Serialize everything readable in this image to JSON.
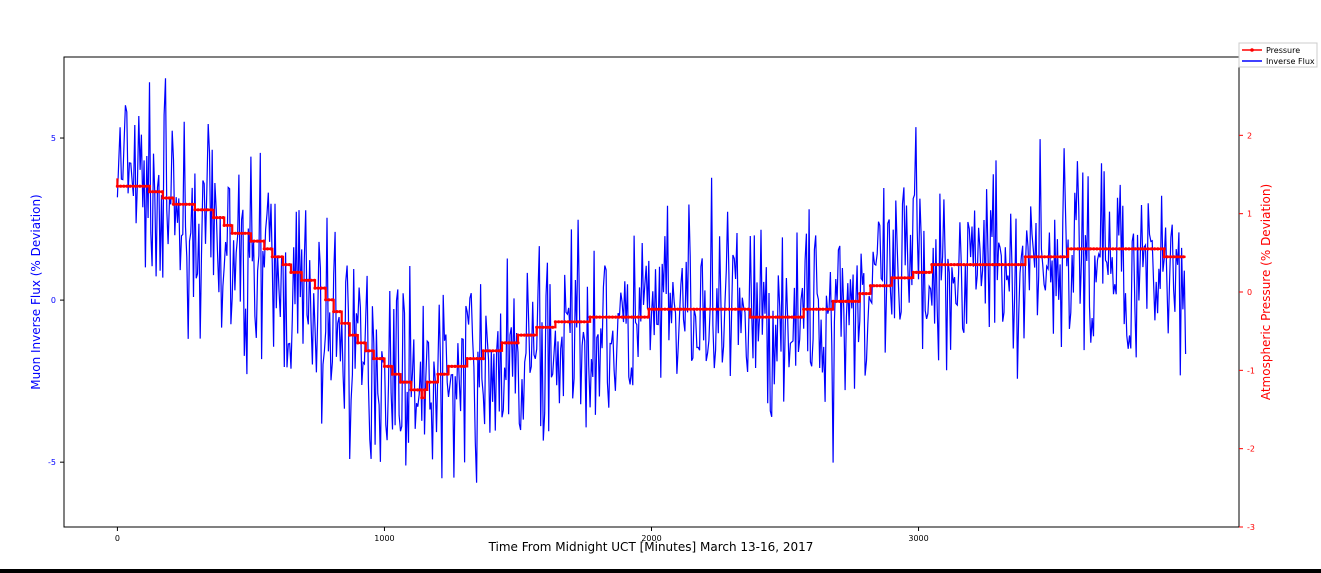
{
  "chart_data": {
    "type": "line",
    "title": "",
    "xlabel": "Time From Midnight UCT [Minutes] March 13-16, 2017",
    "ylabel_left": "Muon Inverse Flux (% Deviation)",
    "ylabel_right": "Atmospheric Pressure (% Deviation)",
    "xlim": [
      -200,
      4200
    ],
    "ylim_left": [
      -7,
      7.5
    ],
    "ylim_right": [
      -3,
      3
    ],
    "x_ticks": [
      0,
      1000,
      2000,
      3000
    ],
    "y_ticks_left": [
      -5,
      0,
      5
    ],
    "y_ticks_right": [
      -3,
      -2,
      -1,
      0,
      1,
      2
    ],
    "grid": false,
    "legend_placement": "top-right outside",
    "colors": {
      "pressure": "#ff0000",
      "flux": "#0000ff",
      "right_axis": "#ff0000",
      "left_axis": "#0000ff"
    },
    "series": [
      {
        "name": "Pressure",
        "axis": "right",
        "marker": "dot",
        "points": [
          [
            0,
            1.45
          ],
          [
            0,
            1.35
          ],
          [
            120,
            1.35
          ],
          [
            120,
            1.28
          ],
          [
            170,
            1.28
          ],
          [
            170,
            1.2
          ],
          [
            210,
            1.2
          ],
          [
            210,
            1.12
          ],
          [
            290,
            1.12
          ],
          [
            290,
            1.05
          ],
          [
            360,
            1.05
          ],
          [
            360,
            0.95
          ],
          [
            400,
            0.95
          ],
          [
            400,
            0.85
          ],
          [
            430,
            0.85
          ],
          [
            430,
            0.75
          ],
          [
            500,
            0.75
          ],
          [
            500,
            0.65
          ],
          [
            550,
            0.65
          ],
          [
            550,
            0.55
          ],
          [
            580,
            0.55
          ],
          [
            580,
            0.45
          ],
          [
            620,
            0.45
          ],
          [
            620,
            0.35
          ],
          [
            650,
            0.35
          ],
          [
            650,
            0.25
          ],
          [
            690,
            0.25
          ],
          [
            690,
            0.15
          ],
          [
            740,
            0.15
          ],
          [
            740,
            0.05
          ],
          [
            780,
            0.05
          ],
          [
            780,
            -0.1
          ],
          [
            810,
            -0.1
          ],
          [
            810,
            -0.25
          ],
          [
            840,
            -0.25
          ],
          [
            840,
            -0.4
          ],
          [
            870,
            -0.4
          ],
          [
            870,
            -0.55
          ],
          [
            900,
            -0.55
          ],
          [
            900,
            -0.65
          ],
          [
            930,
            -0.65
          ],
          [
            930,
            -0.75
          ],
          [
            960,
            -0.75
          ],
          [
            960,
            -0.85
          ],
          [
            1000,
            -0.85
          ],
          [
            1000,
            -0.95
          ],
          [
            1030,
            -0.95
          ],
          [
            1030,
            -1.05
          ],
          [
            1060,
            -1.05
          ],
          [
            1060,
            -1.15
          ],
          [
            1100,
            -1.15
          ],
          [
            1100,
            -1.25
          ],
          [
            1140,
            -1.25
          ],
          [
            1140,
            -1.35
          ],
          [
            1150,
            -1.35
          ],
          [
            1150,
            -1.25
          ],
          [
            1160,
            -1.25
          ],
          [
            1160,
            -1.15
          ],
          [
            1200,
            -1.15
          ],
          [
            1200,
            -1.05
          ],
          [
            1240,
            -1.05
          ],
          [
            1240,
            -0.95
          ],
          [
            1310,
            -0.95
          ],
          [
            1310,
            -0.85
          ],
          [
            1370,
            -0.85
          ],
          [
            1370,
            -0.75
          ],
          [
            1440,
            -0.75
          ],
          [
            1440,
            -0.65
          ],
          [
            1500,
            -0.65
          ],
          [
            1500,
            -0.55
          ],
          [
            1570,
            -0.55
          ],
          [
            1570,
            -0.45
          ],
          [
            1640,
            -0.45
          ],
          [
            1640,
            -0.38
          ],
          [
            1770,
            -0.38
          ],
          [
            1770,
            -0.32
          ],
          [
            1990,
            -0.32
          ],
          [
            1990,
            -0.22
          ],
          [
            2370,
            -0.22
          ],
          [
            2370,
            -0.32
          ],
          [
            2570,
            -0.32
          ],
          [
            2570,
            -0.22
          ],
          [
            2680,
            -0.22
          ],
          [
            2680,
            -0.12
          ],
          [
            2780,
            -0.12
          ],
          [
            2780,
            -0.02
          ],
          [
            2820,
            -0.02
          ],
          [
            2820,
            0.08
          ],
          [
            2900,
            0.08
          ],
          [
            2900,
            0.18
          ],
          [
            2980,
            0.18
          ],
          [
            2980,
            0.25
          ],
          [
            3050,
            0.25
          ],
          [
            3050,
            0.35
          ],
          [
            3400,
            0.35
          ],
          [
            3400,
            0.45
          ],
          [
            3560,
            0.45
          ],
          [
            3560,
            0.55
          ],
          [
            3920,
            0.55
          ],
          [
            3920,
            0.45
          ],
          [
            4000,
            0.45
          ]
        ]
      },
      {
        "name": "Inverse Flux",
        "axis": "left",
        "marker": "none",
        "generated": true,
        "length_minutes": 4000,
        "step_minutes": 5,
        "trend_points": [
          [
            0,
            4.0
          ],
          [
            200,
            3.0
          ],
          [
            400,
            1.5
          ],
          [
            600,
            0.5
          ],
          [
            800,
            -0.8
          ],
          [
            1000,
            -2.0
          ],
          [
            1200,
            -2.5
          ],
          [
            1400,
            -2.2
          ],
          [
            1700,
            -1.2
          ],
          [
            2000,
            -0.6
          ],
          [
            2300,
            -0.5
          ],
          [
            2600,
            -0.5
          ],
          [
            2800,
            0.2
          ],
          [
            3000,
            1.0
          ],
          [
            3300,
            1.2
          ],
          [
            3600,
            1.3
          ],
          [
            3800,
            1.2
          ],
          [
            4000,
            1.0
          ]
        ],
        "noise_amplitude": 2.2,
        "y_range": [
          -6.5,
          7.0
        ],
        "seed": 7
      }
    ]
  }
}
